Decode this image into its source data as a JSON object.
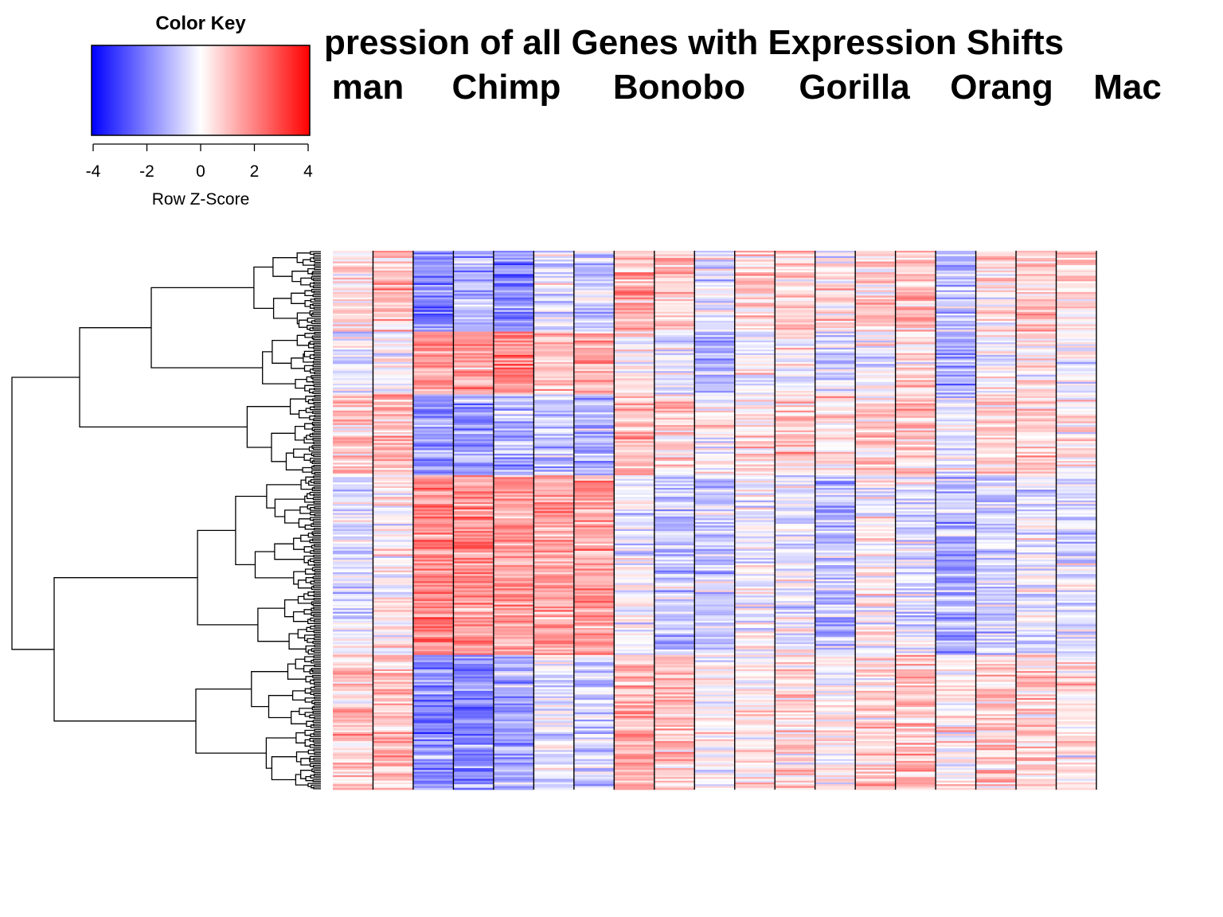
{
  "title_lines": [
    "pression of all Genes with Expression Shifts"
  ],
  "column_groups": [
    {
      "label": "man",
      "x_center": 462
    },
    {
      "label": "Chimp",
      "x_center": 636
    },
    {
      "label": "Bonobo",
      "x_center": 853
    },
    {
      "label": "Gorilla",
      "x_center": 1073
    },
    {
      "label": "Orang",
      "x_center": 1258
    },
    {
      "label": "Mac",
      "x_center": 1416
    }
  ],
  "color_key": {
    "title": "Color Key",
    "xlabel": "Row Z-Score",
    "range": [
      -4,
      4
    ],
    "ticks": [
      "-4",
      "-2",
      "0",
      "2",
      "4"
    ],
    "low_color": "#0000ff",
    "mid_color": "#ffffff",
    "high_color": "#ff0000"
  },
  "chart_data": {
    "type": "heatmap",
    "title": "pression of all Genes with Expression Shifts",
    "value_label": "Row Z-Score",
    "value_range": [
      -4,
      4
    ],
    "colors": {
      "low": "#0000ff",
      "mid": "#ffffff",
      "high": "#ff0000"
    },
    "n_columns": 19,
    "column_group_labels": [
      "man",
      "Chimp",
      "Bonobo",
      "Gorilla",
      "Orang",
      "Mac"
    ],
    "row_dendrogram": true,
    "approx_rows": 300,
    "row_blocks": [
      {
        "rows": 45,
        "means": [
          0.5,
          1.0,
          -1.8,
          -1.2,
          -1.9,
          -0.4,
          -0.8,
          1.3,
          0.9,
          -0.3,
          0.6,
          0.7,
          0.3,
          0.8,
          1.0,
          -0.8,
          0.5,
          0.8,
          0.4
        ]
      },
      {
        "rows": 35,
        "means": [
          -0.4,
          -0.1,
          1.8,
          1.5,
          1.8,
          1.0,
          1.2,
          0.2,
          -0.4,
          -0.9,
          0.0,
          0.2,
          -0.6,
          -0.2,
          0.5,
          -1.3,
          -0.1,
          0.4,
          -0.2
        ]
      },
      {
        "rows": 45,
        "means": [
          0.7,
          0.9,
          -1.6,
          -1.4,
          -1.2,
          -0.9,
          -1.1,
          1.1,
          0.7,
          0.0,
          0.6,
          0.8,
          0.4,
          0.8,
          0.8,
          -0.3,
          0.7,
          0.7,
          0.4
        ]
      },
      {
        "rows": 100,
        "means": [
          -0.4,
          0.1,
          1.8,
          1.7,
          1.5,
          1.4,
          1.5,
          -0.1,
          -0.8,
          -0.7,
          -0.1,
          -0.2,
          -1.0,
          0.0,
          -0.4,
          -1.2,
          -0.7,
          -0.1,
          -0.5
        ]
      },
      {
        "rows": 75,
        "means": [
          0.8,
          1.0,
          -1.8,
          -1.7,
          -1.4,
          -0.3,
          -0.7,
          1.2,
          0.9,
          0.1,
          0.4,
          0.5,
          0.2,
          0.6,
          1.0,
          0.2,
          0.7,
          0.7,
          0.4
        ]
      }
    ]
  }
}
